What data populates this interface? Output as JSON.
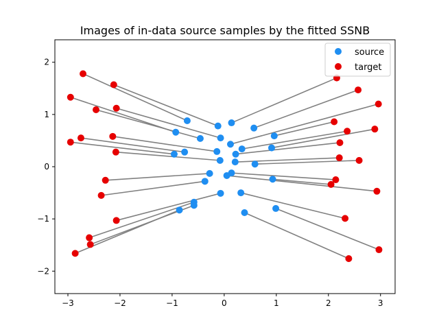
{
  "chart_data": {
    "type": "scatter",
    "title": "Images of in-data source samples by the fitted SSNB",
    "xlabel": "",
    "ylabel": "",
    "xlim": [
      -3.25,
      3.28
    ],
    "ylim": [
      -2.43,
      2.43
    ],
    "xticks": [
      -3,
      -2,
      -1,
      0,
      1,
      2,
      3
    ],
    "yticks": [
      -2,
      -1,
      0,
      1,
      2
    ],
    "grid": false,
    "legend_position": "top-right",
    "colors": {
      "source": "#1f8ef1",
      "target": "#e60000",
      "line": "#808080"
    },
    "series": [
      {
        "name": "source",
        "points": [
          [
            -0.71,
            0.88
          ],
          [
            -0.12,
            0.78
          ],
          [
            -0.93,
            0.66
          ],
          [
            -0.46,
            0.54
          ],
          [
            -0.07,
            0.55
          ],
          [
            -0.14,
            0.29
          ],
          [
            -0.76,
            0.28
          ],
          [
            -0.96,
            0.24
          ],
          [
            -0.08,
            0.12
          ],
          [
            0.14,
            0.84
          ],
          [
            0.57,
            0.74
          ],
          [
            0.12,
            0.43
          ],
          [
            0.96,
            0.59
          ],
          [
            0.34,
            0.34
          ],
          [
            0.91,
            0.36
          ],
          [
            0.22,
            0.24
          ],
          [
            0.21,
            0.09
          ],
          [
            0.59,
            0.05
          ],
          [
            -0.28,
            -0.13
          ],
          [
            -0.37,
            -0.28
          ],
          [
            -0.07,
            -0.51
          ],
          [
            -0.58,
            -0.68
          ],
          [
            -0.58,
            -0.74
          ],
          [
            -0.86,
            -0.83
          ],
          [
            0.14,
            -0.12
          ],
          [
            0.05,
            -0.17
          ],
          [
            0.93,
            -0.24
          ],
          [
            0.32,
            -0.5
          ],
          [
            0.99,
            -0.8
          ],
          [
            0.39,
            -0.88
          ]
        ]
      },
      {
        "name": "target",
        "points": [
          [
            -2.71,
            1.78
          ],
          [
            -2.12,
            1.57
          ],
          [
            -2.95,
            1.33
          ],
          [
            -2.46,
            1.09
          ],
          [
            -2.07,
            1.12
          ],
          [
            -2.14,
            0.58
          ],
          [
            -2.75,
            0.55
          ],
          [
            -2.95,
            0.47
          ],
          [
            -2.08,
            0.28
          ],
          [
            2.16,
            1.7
          ],
          [
            2.57,
            1.47
          ],
          [
            2.96,
            1.2
          ],
          [
            2.11,
            0.86
          ],
          [
            2.36,
            0.68
          ],
          [
            2.89,
            0.72
          ],
          [
            2.22,
            0.46
          ],
          [
            2.21,
            0.17
          ],
          [
            2.59,
            0.12
          ],
          [
            -2.28,
            -0.26
          ],
          [
            -2.36,
            -0.55
          ],
          [
            -2.07,
            -1.03
          ],
          [
            -2.59,
            -1.36
          ],
          [
            -2.57,
            -1.49
          ],
          [
            -2.86,
            -1.66
          ],
          [
            2.14,
            -0.25
          ],
          [
            2.93,
            -0.47
          ],
          [
            2.05,
            -0.34
          ],
          [
            2.32,
            -0.99
          ],
          [
            2.97,
            -1.59
          ],
          [
            2.39,
            -1.76
          ]
        ]
      }
    ]
  }
}
